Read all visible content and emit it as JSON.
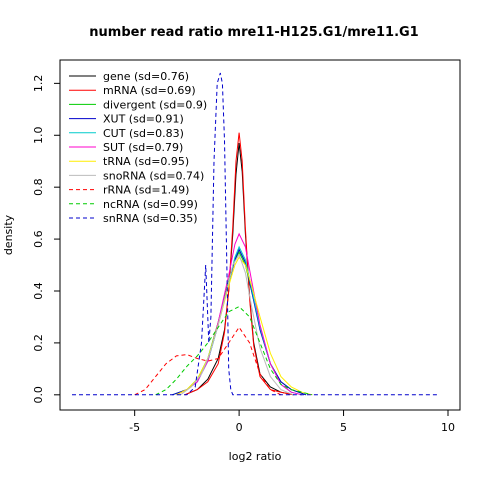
{
  "chart_data": {
    "type": "line",
    "title": "number read ratio mre11-H125.G1/mre11.G1",
    "xlabel": "log2 ratio",
    "ylabel": "density",
    "xlim": [
      -8,
      10
    ],
    "ylim": [
      -0.02,
      1.29
    ],
    "x_ticks": [
      -5,
      0,
      5,
      10
    ],
    "y_ticks": [
      0.0,
      0.2,
      0.4,
      0.6,
      0.8,
      1.0,
      1.2
    ],
    "x_tick_labels": [
      "-5",
      "0",
      "5",
      "10"
    ],
    "y_tick_labels": [
      "0.0",
      "0.2",
      "0.4",
      "0.6",
      "0.8",
      "1.0",
      "1.2"
    ],
    "grid": false,
    "legend_position": "top-left",
    "series": [
      {
        "name": "gene (sd=0.76)",
        "color": "#000000",
        "dash": "solid",
        "x": [
          -2.6,
          -2,
          -1.5,
          -1,
          -0.7,
          -0.5,
          -0.3,
          -0.15,
          0,
          0.15,
          0.3,
          0.5,
          0.7,
          1,
          1.5,
          2,
          2.6
        ],
        "y": [
          0,
          0.02,
          0.06,
          0.14,
          0.25,
          0.4,
          0.62,
          0.85,
          0.97,
          0.86,
          0.62,
          0.38,
          0.2,
          0.08,
          0.03,
          0.01,
          0
        ]
      },
      {
        "name": "mRNA (sd=0.69)",
        "color": "#ff0000",
        "dash": "solid",
        "x": [
          -2.6,
          -2,
          -1.5,
          -1,
          -0.7,
          -0.5,
          -0.3,
          -0.15,
          0,
          0.15,
          0.3,
          0.5,
          0.7,
          1,
          1.5,
          2,
          2.6
        ],
        "y": [
          0,
          0.02,
          0.05,
          0.12,
          0.24,
          0.4,
          0.65,
          0.9,
          1.01,
          0.9,
          0.64,
          0.37,
          0.19,
          0.07,
          0.02,
          0.01,
          0
        ]
      },
      {
        "name": "divergent (sd=0.9)",
        "color": "#00cc00",
        "dash": "solid",
        "x": [
          -3.2,
          -2.5,
          -2,
          -1.5,
          -1,
          -0.5,
          -0.2,
          0,
          0.3,
          0.6,
          1,
          1.5,
          2,
          2.5,
          3.2
        ],
        "y": [
          0,
          0.02,
          0.06,
          0.14,
          0.28,
          0.44,
          0.52,
          0.55,
          0.5,
          0.4,
          0.26,
          0.12,
          0.05,
          0.02,
          0
        ]
      },
      {
        "name": "XUT (sd=0.91)",
        "color": "#0000cc",
        "dash": "solid",
        "x": [
          -3.2,
          -2.5,
          -2,
          -1.5,
          -1,
          -0.5,
          -0.2,
          0,
          0.3,
          0.6,
          1,
          1.5,
          2,
          2.5,
          3.2
        ],
        "y": [
          0,
          0.02,
          0.05,
          0.13,
          0.27,
          0.43,
          0.52,
          0.56,
          0.51,
          0.4,
          0.25,
          0.12,
          0.05,
          0.02,
          0
        ]
      },
      {
        "name": "CUT (sd=0.83)",
        "color": "#00cccc",
        "dash": "solid",
        "x": [
          -3,
          -2.5,
          -2,
          -1.5,
          -1,
          -0.5,
          -0.2,
          0,
          0.3,
          0.6,
          1,
          1.5,
          2,
          2.5,
          3
        ],
        "y": [
          0,
          0.02,
          0.05,
          0.13,
          0.27,
          0.43,
          0.53,
          0.57,
          0.52,
          0.41,
          0.26,
          0.12,
          0.04,
          0.01,
          0
        ]
      },
      {
        "name": "SUT (sd=0.79)",
        "color": "#ff00cc",
        "dash": "solid",
        "x": [
          -3,
          -2.5,
          -2,
          -1.5,
          -1,
          -0.5,
          -0.2,
          0,
          0.3,
          0.6,
          1,
          1.5,
          2,
          2.5,
          3
        ],
        "y": [
          0,
          0.02,
          0.05,
          0.13,
          0.28,
          0.46,
          0.58,
          0.62,
          0.57,
          0.44,
          0.27,
          0.12,
          0.04,
          0.01,
          0
        ]
      },
      {
        "name": "tRNA (sd=0.95)",
        "color": "#ffee00",
        "dash": "solid",
        "x": [
          -3,
          -2.5,
          -2,
          -1.5,
          -1,
          -0.5,
          -0.2,
          0,
          0.3,
          0.6,
          1,
          1.5,
          2,
          2.5,
          3,
          3.5
        ],
        "y": [
          0,
          0.02,
          0.06,
          0.14,
          0.27,
          0.42,
          0.5,
          0.53,
          0.5,
          0.42,
          0.3,
          0.16,
          0.07,
          0.03,
          0.01,
          0
        ]
      },
      {
        "name": "snoRNA (sd=0.74)",
        "color": "#bbbbbb",
        "dash": "solid",
        "x": [
          -2.8,
          -2.3,
          -1.8,
          -1.4,
          -1,
          -0.6,
          -0.3,
          0,
          0.3,
          0.6,
          1,
          1.5,
          2,
          2.6
        ],
        "y": [
          0,
          0.03,
          0.08,
          0.16,
          0.27,
          0.4,
          0.5,
          0.54,
          0.47,
          0.34,
          0.18,
          0.07,
          0.02,
          0
        ]
      },
      {
        "name": "rRNA (sd=1.49)",
        "color": "#ff0000",
        "dash": "dashed",
        "x": [
          -5,
          -4.5,
          -4,
          -3.5,
          -3,
          -2.5,
          -2,
          -1.5,
          -1,
          -0.5,
          0,
          0.5,
          1,
          1.5,
          2
        ],
        "y": [
          0,
          0.02,
          0.07,
          0.12,
          0.15,
          0.155,
          0.14,
          0.13,
          0.14,
          0.2,
          0.26,
          0.2,
          0.08,
          0.02,
          0
        ]
      },
      {
        "name": "ncRNA (sd=0.99)",
        "color": "#00cc00",
        "dash": "dashed",
        "x": [
          -4,
          -3.5,
          -3,
          -2.5,
          -2,
          -1.5,
          -1,
          -0.5,
          0,
          0.5,
          1,
          1.5,
          2,
          2.5,
          3,
          3.5
        ],
        "y": [
          0,
          0.02,
          0.06,
          0.11,
          0.15,
          0.2,
          0.26,
          0.32,
          0.34,
          0.3,
          0.2,
          0.1,
          0.04,
          0.02,
          0.01,
          0
        ]
      },
      {
        "name": "snRNA (sd=0.35)",
        "color": "#0000cc",
        "dash": "dashed",
        "x": [
          -8,
          -2.5,
          -2.1,
          -1.8,
          -1.6,
          -1.45,
          -1.35,
          -1.2,
          -1.05,
          -0.9,
          -0.8,
          -0.7,
          -0.6,
          -0.5,
          -0.4,
          -0.3,
          9.5
        ],
        "y": [
          0,
          0,
          0.03,
          0.2,
          0.5,
          0.2,
          0.3,
          0.9,
          1.2,
          1.24,
          1.2,
          0.98,
          0.55,
          0.1,
          0.02,
          0,
          0
        ]
      }
    ]
  }
}
